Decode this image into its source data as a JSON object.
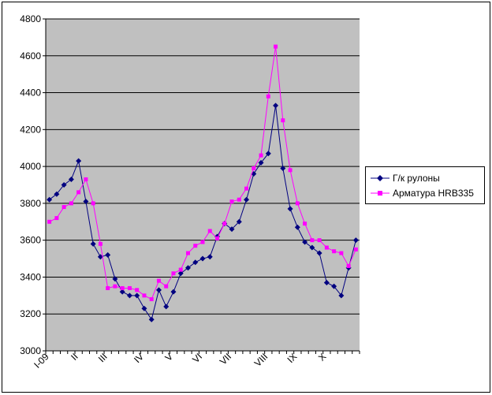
{
  "chart_data": {
    "type": "line",
    "title": "",
    "xlabel": "",
    "ylabel": "",
    "ylim": [
      3000,
      4800
    ],
    "yticks": [
      "3000",
      "3200",
      "3400",
      "3600",
      "3800",
      "4000",
      "4200",
      "4400",
      "4600",
      "4800"
    ],
    "xtick_labels": [
      {
        "label": "I-09",
        "index": 0
      },
      {
        "label": "II",
        "index": 4
      },
      {
        "label": "III",
        "index": 8
      },
      {
        "label": "IV",
        "index": 13
      },
      {
        "label": "V",
        "index": 17
      },
      {
        "label": "VI",
        "index": 21
      },
      {
        "label": "VII",
        "index": 25
      },
      {
        "label": "VIII",
        "index": 30
      },
      {
        "label": "IX",
        "index": 34
      },
      {
        "label": "X",
        "index": 38
      }
    ],
    "grid": true,
    "legend_position": "right",
    "series": [
      {
        "name": "Г/к рулоны",
        "color": "#000080",
        "marker": "diamond",
        "values": [
          3820,
          3850,
          3900,
          3930,
          4030,
          3810,
          3580,
          3510,
          3520,
          3390,
          3320,
          3300,
          3300,
          3230,
          3170,
          3330,
          3240,
          3320,
          3420,
          3450,
          3480,
          3500,
          3510,
          3620,
          3690,
          3660,
          3700,
          3820,
          3960,
          4020,
          4070,
          4330,
          3990,
          3770,
          3670,
          3590,
          3560,
          3530,
          3370,
          3350,
          3300,
          3450,
          3600
        ]
      },
      {
        "name": "Арматура HRB335",
        "color": "#ff00ff",
        "marker": "square",
        "values": [
          3700,
          3720,
          3780,
          3800,
          3860,
          3930,
          3800,
          3580,
          3340,
          3350,
          3340,
          3340,
          3330,
          3300,
          3280,
          3380,
          3350,
          3420,
          3440,
          3530,
          3570,
          3590,
          3650,
          3610,
          3690,
          3810,
          3820,
          3880,
          3990,
          4060,
          4380,
          4650,
          4250,
          3980,
          3800,
          3690,
          3600,
          3600,
          3560,
          3540,
          3530,
          3460,
          3550
        ]
      }
    ]
  }
}
